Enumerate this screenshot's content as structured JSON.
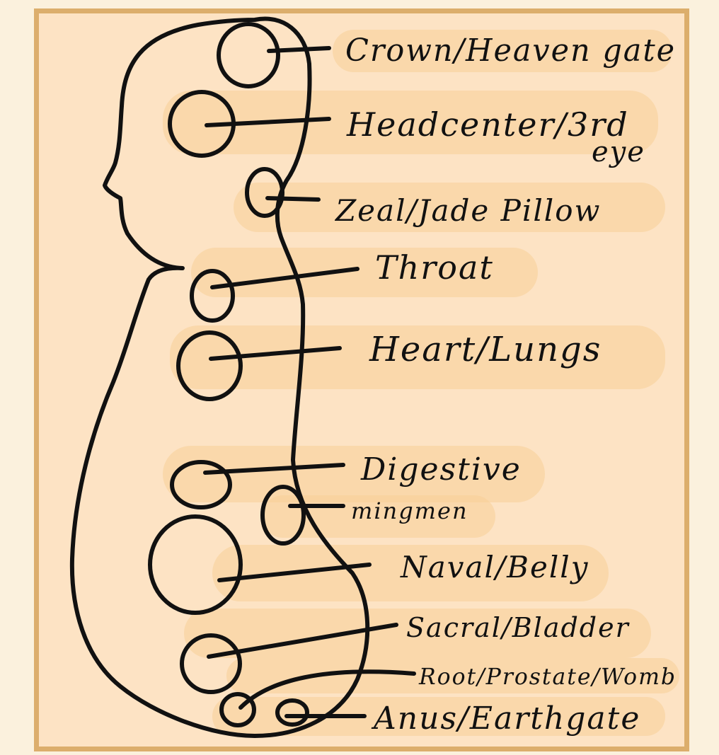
{
  "labels": {
    "crown": "Crown/Heaven gate",
    "head_center_1": "Headcenter/3rd",
    "head_center_2": "eye",
    "zeal": "Zeal/Jade Pillow",
    "throat": "Throat",
    "heart": "Heart/Lungs",
    "digestive": "Digestive",
    "mingmen": "mingmen",
    "naval": "Naval/Belly",
    "sacral": "Sacral/Bladder",
    "root": "Root/Prostate/Womb",
    "anus": "Anus/Earthgate"
  },
  "colors": {
    "frame": "#dcae6c",
    "paper": "#fde3c4",
    "glow": "#f8cf97",
    "ink": "#111111"
  }
}
